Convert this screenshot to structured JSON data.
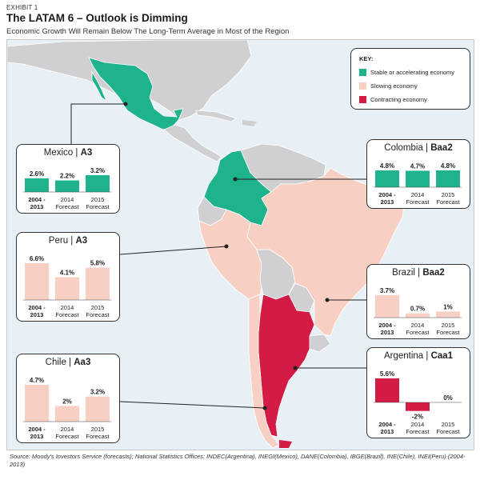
{
  "exhibit": "EXHIBIT 1",
  "title": "The LATAM 6 – Outlook is Dimming",
  "subtitle": "Economic Growth Will Remain Below The Long-Term Average in Most of the Region",
  "key": {
    "title": "KEY:",
    "items": [
      {
        "label": "Stable or accelerating economy",
        "color": "#1eb38c"
      },
      {
        "label": "Slowing economy",
        "color": "#f8d0c3"
      },
      {
        "label": "Contracting economy",
        "color": "#d41b45"
      }
    ]
  },
  "source": "Source: Moody's Investors Service (forecasts); National Statistics Offices: INDEC(Argentina), INEGI(Mexico), DANE(Colombia), IBGE(Brazil), INE(Chile), INEI(Peru) (2004-2013)",
  "colors": {
    "land": "#d0d0d2",
    "sea": "#e8f0f6"
  },
  "chart_data": [
    {
      "type": "bar",
      "country": "Mexico",
      "rating": "A3",
      "status": "stable",
      "color": "#1eb38c",
      "categories": [
        [
          "2004 -",
          "2013"
        ],
        [
          "2014",
          "Forecast"
        ],
        [
          "2015",
          "Forecast"
        ]
      ],
      "values": [
        2.6,
        2.2,
        3.2
      ],
      "labels": [
        "2.6%",
        "2.2%",
        "3.2%"
      ]
    },
    {
      "type": "bar",
      "country": "Colombia",
      "rating": "Baa2",
      "status": "stable",
      "color": "#1eb38c",
      "categories": [
        [
          "2004 -",
          "2013"
        ],
        [
          "2014",
          "Forecast"
        ],
        [
          "2015",
          "Forecast"
        ]
      ],
      "values": [
        4.8,
        4.7,
        4.8
      ],
      "labels": [
        "4.8%",
        "4.7%",
        "4.8%"
      ]
    },
    {
      "type": "bar",
      "country": "Peru",
      "rating": "A3",
      "status": "slowing",
      "color": "#f8d0c3",
      "categories": [
        [
          "2004 -",
          "2013"
        ],
        [
          "2014",
          "Forecast"
        ],
        [
          "2015",
          "Forecast"
        ]
      ],
      "values": [
        6.6,
        4.1,
        5.8
      ],
      "labels": [
        "6.6%",
        "4.1%",
        "5.8%"
      ]
    },
    {
      "type": "bar",
      "country": "Brazil",
      "rating": "Baa2",
      "status": "slowing",
      "color": "#f8d0c3",
      "categories": [
        [
          "2004 -",
          "2013"
        ],
        [
          "2014",
          "Forecast"
        ],
        [
          "2015",
          "Forecast"
        ]
      ],
      "values": [
        3.7,
        0.7,
        1
      ],
      "labels": [
        "3.7%",
        "0.7%",
        "1%"
      ]
    },
    {
      "type": "bar",
      "country": "Chile",
      "rating": "Aa3",
      "status": "slowing",
      "color": "#f8d0c3",
      "categories": [
        [
          "2004 -",
          "2013"
        ],
        [
          "2014",
          "Forecast"
        ],
        [
          "2015",
          "Forecast"
        ]
      ],
      "values": [
        4.7,
        2,
        3.2
      ],
      "labels": [
        "4.7%",
        "2%",
        "3.2%"
      ]
    },
    {
      "type": "bar",
      "country": "Argentina",
      "rating": "Caa1",
      "status": "contracting",
      "color": "#d41b45",
      "categories": [
        [
          "2004 -",
          "2013"
        ],
        [
          "2014",
          "Forecast"
        ],
        [
          "2015",
          "Forecast"
        ]
      ],
      "values": [
        5.6,
        -2,
        0
      ],
      "labels": [
        "5.6%",
        "-2%",
        "0%"
      ]
    }
  ]
}
